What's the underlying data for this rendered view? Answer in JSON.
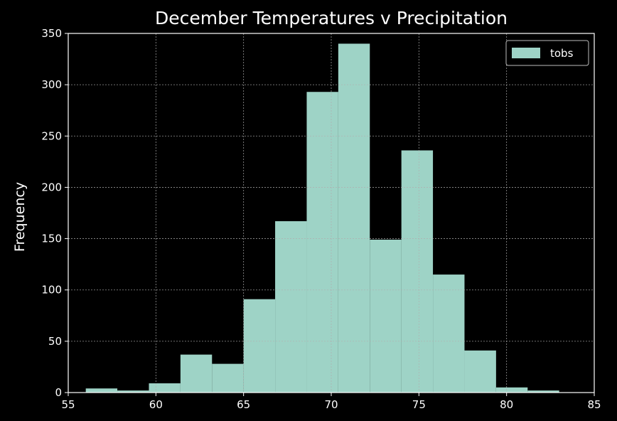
{
  "chart_data": {
    "type": "histogram",
    "title": "December Temperatures v Precipitation",
    "xlabel": "",
    "ylabel": "Frequency",
    "xlim": [
      55,
      85
    ],
    "ylim": [
      0,
      350
    ],
    "xticks": [
      55,
      60,
      65,
      70,
      75,
      80,
      85
    ],
    "yticks": [
      0,
      50,
      100,
      150,
      200,
      250,
      300,
      350
    ],
    "grid": true,
    "legend_position": "top-right",
    "bin_edges": [
      56,
      57.8,
      59.6,
      61.4,
      63.2,
      65,
      66.8,
      68.6,
      70.4,
      72.2,
      74,
      75.8,
      77.6,
      79.4,
      81.2,
      83
    ],
    "series": [
      {
        "name": "tobs",
        "values": [
          4,
          2,
          9,
          37,
          28,
          91,
          167,
          293,
          340,
          149,
          236,
          115,
          41,
          5,
          2
        ]
      }
    ],
    "colors": {
      "background": "#000000",
      "bar": "#9ed3c6",
      "grid": "#b0b0b0",
      "axis": "#ffffff",
      "text": "#ffffff"
    }
  }
}
